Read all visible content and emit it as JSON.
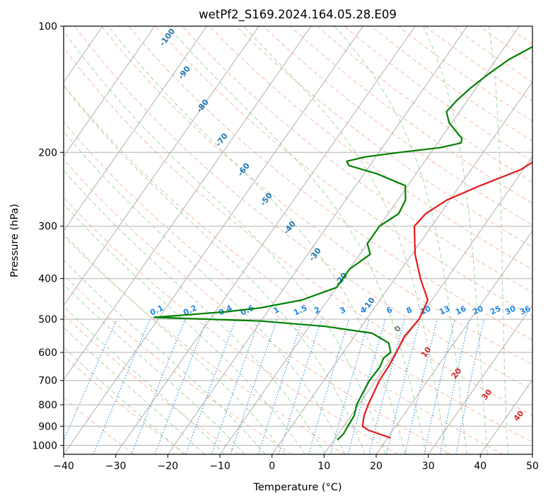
{
  "chart_data": {
    "type": "line",
    "title": "wetPf2_S169.2024.164.05.28.E09",
    "xlabel": "Temperature (°C)",
    "ylabel": "Pressure (hPa)",
    "xlim": [
      -40,
      50
    ],
    "ylim": [
      1050,
      100
    ],
    "y_scale": "log",
    "x_ticks": [
      -40,
      -30,
      -20,
      -10,
      0,
      10,
      20,
      30,
      40,
      50
    ],
    "y_ticks": [
      100,
      200,
      300,
      400,
      500,
      600,
      700,
      800,
      900,
      1000
    ],
    "grid": true,
    "series": [
      {
        "role": "temperature",
        "color": "#e41a1c",
        "pressure": [
          960,
          920,
          900,
          850,
          800,
          750,
          700,
          650,
          600,
          550,
          500,
          450,
          400,
          350,
          300,
          280,
          260,
          240,
          220,
          200,
          180,
          160,
          140,
          120,
          100
        ],
        "temperature": [
          20.6,
          15.3,
          13.6,
          12.5,
          11.8,
          11.3,
          10.7,
          10.6,
          10.2,
          9.6,
          10.1,
          9.2,
          4.9,
          0.6,
          -3.3,
          -2.8,
          -0.6,
          3.9,
          9.5,
          12.5,
          13.3,
          15.4,
          18.6,
          20.6,
          23.0
        ]
      },
      {
        "role": "dewpoint",
        "color": "#008000",
        "pressure": [
          970,
          940,
          900,
          850,
          800,
          750,
          700,
          650,
          620,
          600,
          570,
          540,
          520,
          505,
          495,
          480,
          470,
          450,
          420,
          400,
          380,
          350,
          330,
          300,
          280,
          260,
          240,
          225,
          215,
          210,
          205,
          200,
          195,
          190,
          185,
          180,
          170,
          160,
          150,
          140,
          130,
          120,
          110,
          100
        ],
        "dewpoint": [
          10.6,
          11.0,
          10.8,
          10.6,
          9.6,
          9.2,
          8.8,
          9.0,
          8.5,
          9.1,
          7.5,
          3.0,
          -7.0,
          -20.0,
          -41.0,
          -28.0,
          -22.0,
          -15.0,
          -10.0,
          -10.0,
          -10.0,
          -8.0,
          -10.0,
          -10.0,
          -8.0,
          -8.5,
          -10.5,
          -17.5,
          -24.0,
          -25.0,
          -22.0,
          -16.0,
          -9.0,
          -5.5,
          -6.0,
          -7.5,
          -10.5,
          -12.5,
          -12.0,
          -11.0,
          -9.5,
          -7.5,
          -4.0,
          0.0
        ]
      }
    ],
    "dry_adiabat_labels": [
      -100,
      -90,
      -80,
      -70,
      -60,
      -50,
      -40,
      -30,
      -20,
      -10
    ],
    "moist_adiabat_labels": [
      0,
      10,
      20,
      30,
      40
    ],
    "mixing_ratio_labels": [
      "0.1",
      "0.2",
      "0.4",
      "0.6",
      "1",
      "1.5",
      "2",
      "3",
      "4",
      "6",
      "8",
      "10",
      "13",
      "16",
      "20",
      "25",
      "30",
      "36"
    ],
    "colors": {
      "isotherm": "#b0b0b0",
      "dry_adiabat": "#f9b89f",
      "moist_adiabat": "#a5d6a7",
      "mixing_ratio": "#1e88e5",
      "dry_label": "#1f77b4",
      "moist_label": "#d62728",
      "mixing_label": "#1e88e5",
      "zero_label": "#777777"
    }
  }
}
